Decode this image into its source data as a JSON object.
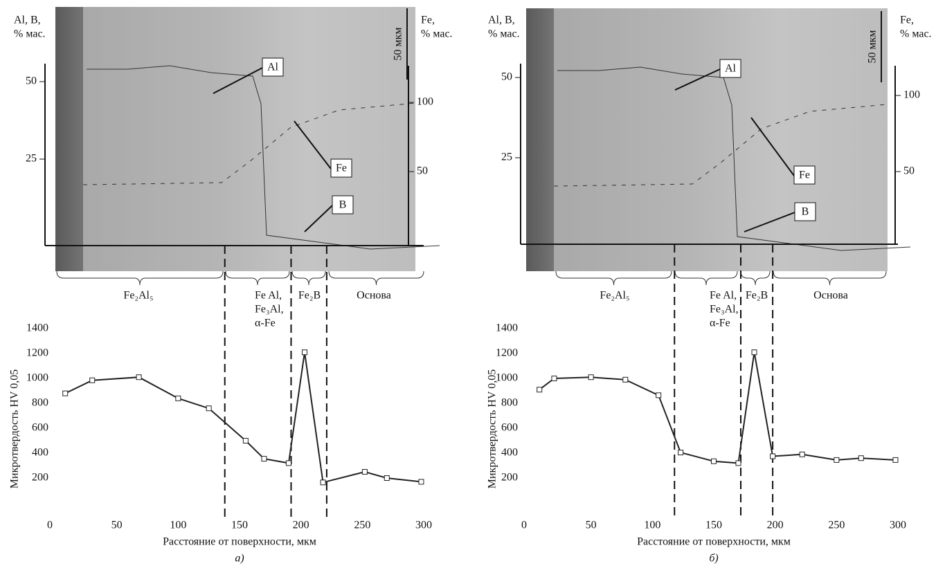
{
  "chart_data": [
    {
      "type": "line",
      "panel_label": "а)",
      "xlabel": "Расстояние от поверхности, мкм",
      "ylabel": "Микротвердость HV 0,05",
      "x": [
        8,
        30,
        68,
        100,
        125,
        155,
        170,
        190,
        203,
        218,
        252,
        270,
        298
      ],
      "values": [
        880,
        985,
        1010,
        840,
        760,
        500,
        355,
        320,
        1210,
        165,
        250,
        200,
        170
      ],
      "color": "#222222",
      "xlim": [
        0,
        300
      ],
      "xticks": [
        0,
        50,
        100,
        150,
        200,
        250,
        300
      ],
      "ylim": [
        0,
        1400
      ],
      "yticks": [
        200,
        400,
        600,
        800,
        1000,
        1200,
        1400
      ],
      "boundaries": [
        138,
        192,
        221
      ],
      "phases": [
        [
          "Fe₂Al₅"
        ],
        [
          "Fe Al,",
          "Fe₃Al,",
          "α-Fe"
        ],
        [
          "Fe₂B"
        ],
        [
          "Основа"
        ]
      ],
      "micrograph": {
        "left_axis_label": [
          "Al, B,",
          "% мас."
        ],
        "right_axis_label": [
          "Fe,",
          "% мас."
        ],
        "left_ticks": [
          25,
          50
        ],
        "right_ticks": [
          50,
          100
        ],
        "scale_bar": "50 мкм",
        "callouts": [
          "Al",
          "Fe",
          "B"
        ]
      }
    },
    {
      "type": "line",
      "panel_label": "б)",
      "xlabel": "Расстояние от поверхности, мкм",
      "ylabel": "Микротвердость HV 0,05",
      "x": [
        8,
        20,
        50,
        78,
        105,
        123,
        150,
        170,
        183,
        198,
        222,
        250,
        270,
        298
      ],
      "values": [
        910,
        1000,
        1010,
        990,
        865,
        405,
        335,
        320,
        1210,
        375,
        390,
        345,
        360,
        345
      ],
      "color": "#222222",
      "xlim": [
        0,
        300
      ],
      "xticks": [
        0,
        50,
        100,
        150,
        200,
        250,
        300
      ],
      "ylim": [
        0,
        1400
      ],
      "yticks": [
        200,
        400,
        600,
        800,
        1000,
        1200,
        1400
      ],
      "boundaries": [
        118,
        172,
        198
      ],
      "phases": [
        [
          "Fe₂Al₅"
        ],
        [
          "Fe Al,",
          "Fe₃Al,",
          "α-Fe"
        ],
        [
          "Fe₂B"
        ],
        [
          "Основа"
        ]
      ],
      "micrograph": {
        "left_axis_label": [
          "Al, B,",
          "% мас."
        ],
        "right_axis_label": [
          "Fe,",
          "% мас."
        ],
        "left_ticks": [
          25,
          50
        ],
        "right_ticks": [
          50,
          100
        ],
        "scale_bar": "50 мкм",
        "callouts": [
          "Al",
          "Fe",
          "B"
        ]
      }
    }
  ]
}
